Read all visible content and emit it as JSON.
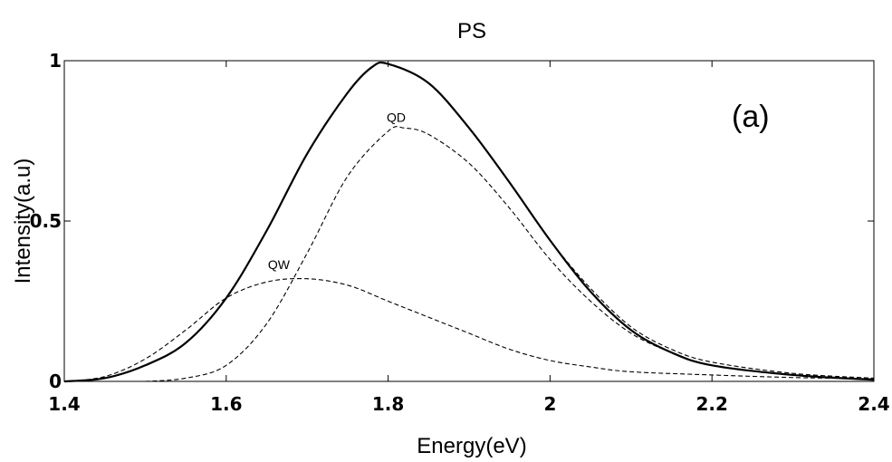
{
  "chart_data": {
    "type": "line",
    "title": "PS",
    "xlabel": "Energy(eV)",
    "ylabel": "Intensity(a.u)",
    "xlim": [
      1.4,
      2.4
    ],
    "ylim": [
      0,
      1
    ],
    "x_ticks": [
      "1.4",
      "1.6",
      "1.8",
      "2",
      "2.2",
      "2.4"
    ],
    "x_tick_values": [
      1.4,
      1.6,
      1.8,
      2.0,
      2.2,
      2.4
    ],
    "y_ticks": [
      "0",
      "0.5",
      "1"
    ],
    "y_tick_values": [
      0,
      0.5,
      1
    ],
    "grid": false,
    "panel_label": "(a)",
    "annotations": [
      {
        "text": "QD",
        "x": 1.81,
        "y": 0.81
      },
      {
        "text": "QW",
        "x": 1.665,
        "y": 0.35
      }
    ],
    "series": [
      {
        "style": "solid",
        "color": "#000000",
        "x": [
          1.4,
          1.45,
          1.5,
          1.55,
          1.6,
          1.65,
          1.7,
          1.75,
          1.78,
          1.8,
          1.85,
          1.9,
          1.95,
          2.0,
          2.05,
          2.1,
          2.15,
          2.2,
          2.3,
          2.4
        ],
        "y": [
          0.0,
          0.01,
          0.05,
          0.12,
          0.26,
          0.47,
          0.71,
          0.9,
          0.98,
          0.99,
          0.93,
          0.79,
          0.62,
          0.44,
          0.28,
          0.16,
          0.09,
          0.05,
          0.02,
          0.005
        ]
      },
      {
        "style": "dashed",
        "color": "#000000",
        "x": [
          1.4,
          1.45,
          1.5,
          1.55,
          1.6,
          1.65,
          1.7,
          1.75,
          1.78,
          1.8,
          1.85,
          1.9,
          1.95,
          2.0,
          2.05,
          2.1,
          2.15,
          2.2,
          2.3,
          2.4
        ],
        "y": [
          0.0,
          0.01,
          0.05,
          0.12,
          0.26,
          0.47,
          0.71,
          0.9,
          0.98,
          0.99,
          0.93,
          0.79,
          0.62,
          0.44,
          0.29,
          0.17,
          0.1,
          0.06,
          0.025,
          0.01
        ]
      },
      {
        "style": "dashed",
        "color": "#000000",
        "x": [
          1.5,
          1.55,
          1.6,
          1.65,
          1.7,
          1.75,
          1.8,
          1.82,
          1.85,
          1.9,
          1.95,
          2.0,
          2.05,
          2.1,
          2.15,
          2.2,
          2.3,
          2.4
        ],
        "y": [
          0.0,
          0.01,
          0.05,
          0.18,
          0.4,
          0.64,
          0.78,
          0.79,
          0.77,
          0.68,
          0.54,
          0.38,
          0.25,
          0.15,
          0.09,
          0.05,
          0.02,
          0.005
        ]
      },
      {
        "style": "dashed",
        "color": "#000000",
        "x": [
          1.4,
          1.45,
          1.5,
          1.55,
          1.6,
          1.65,
          1.7,
          1.75,
          1.8,
          1.85,
          1.9,
          1.95,
          2.0,
          2.05,
          2.1,
          2.2,
          2.3,
          2.4
        ],
        "y": [
          0.0,
          0.015,
          0.07,
          0.16,
          0.26,
          0.31,
          0.32,
          0.3,
          0.25,
          0.2,
          0.15,
          0.1,
          0.065,
          0.045,
          0.03,
          0.02,
          0.012,
          0.008
        ]
      }
    ]
  }
}
